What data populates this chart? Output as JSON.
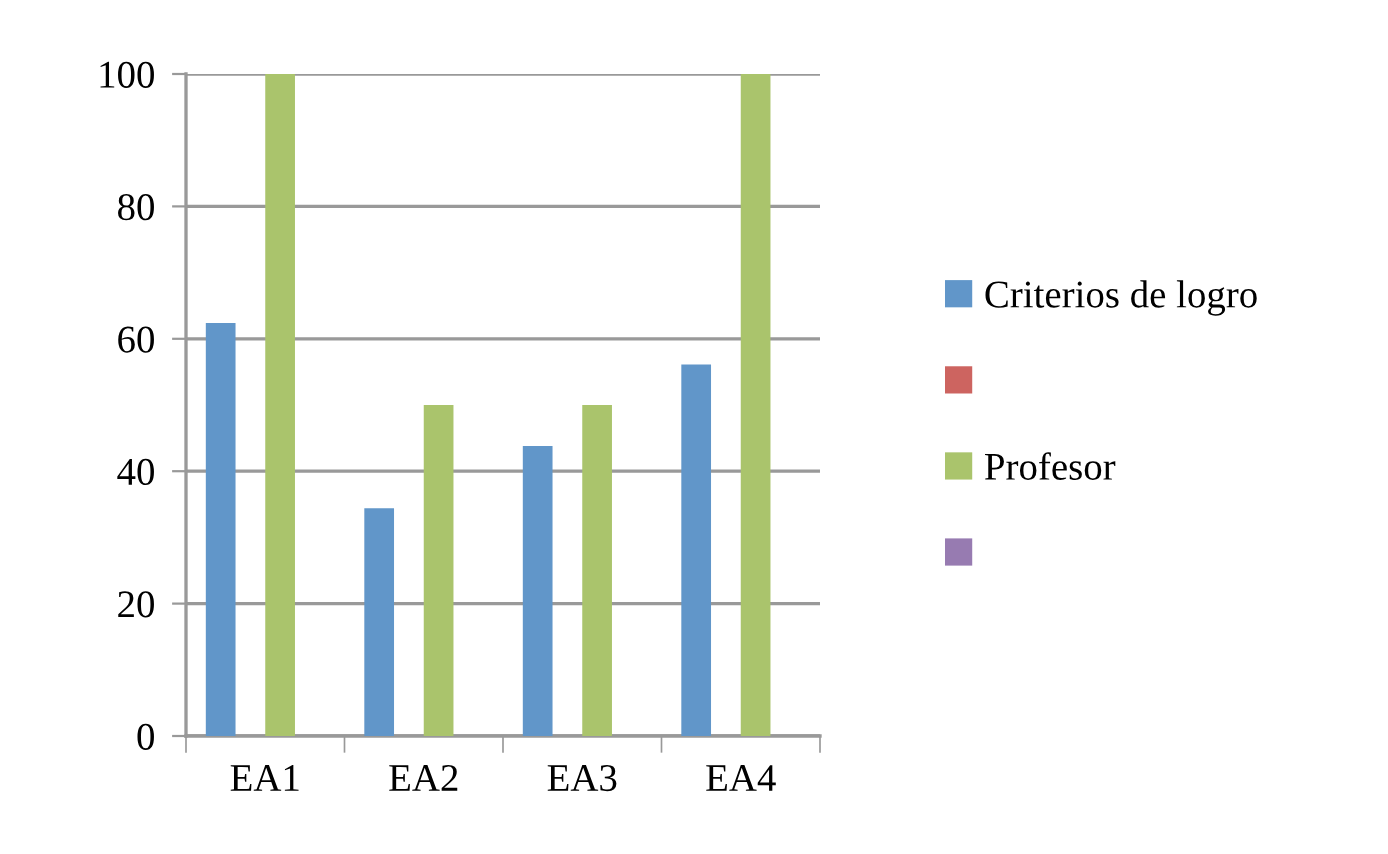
{
  "chart_data": {
    "type": "bar",
    "categories": [
      "EA1",
      "EA2",
      "EA3",
      "EA4"
    ],
    "series": [
      {
        "name": "Criterios de logro",
        "color": "#6196c9",
        "values": [
          62.4,
          34.4,
          43.8,
          56.1
        ]
      },
      {
        "color": "#cd6460",
        "values": [
          null,
          null,
          null,
          null
        ]
      },
      {
        "name": "Profesor",
        "color": "#aac46c",
        "values": [
          100,
          50,
          50,
          100
        ]
      },
      {
        "color": "#977bb1",
        "values": [
          null,
          null,
          null,
          null
        ]
      }
    ],
    "ylim": [
      0,
      100
    ],
    "yticks": [
      0,
      20,
      40,
      60,
      80,
      100
    ],
    "grid": "y",
    "legend": "right"
  }
}
